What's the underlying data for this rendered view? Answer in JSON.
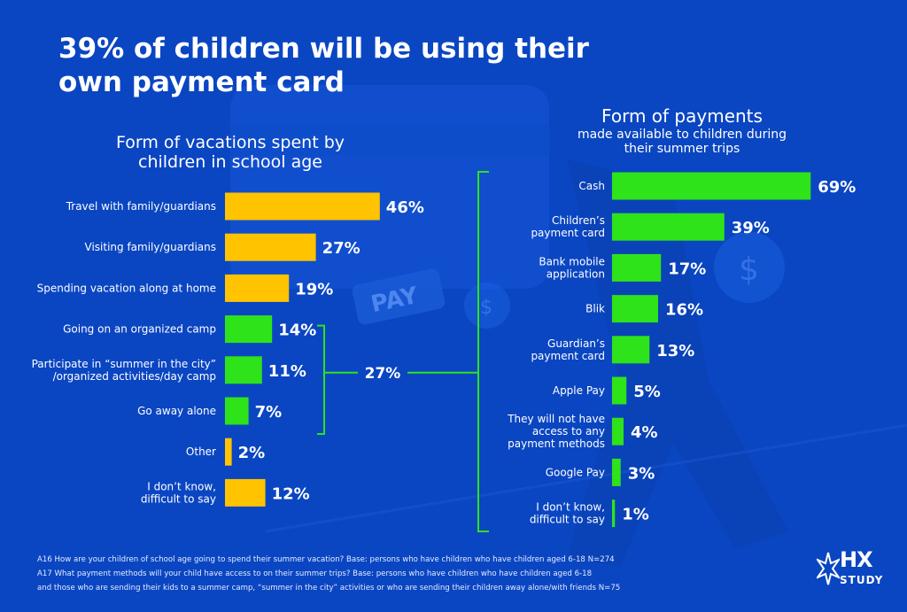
{
  "title": "39% of children will be using their own payment card",
  "chart_data": [
    {
      "type": "bar",
      "orientation": "horizontal",
      "title": "Form of vacations spent by children in school age",
      "categories": [
        "Travel with family/guardians",
        "Visiting family/guardians",
        "Spending vacation along at home",
        "Going on an organized camp",
        "Participate in “summer in the city” /organized activities/day camp",
        "Go away alone",
        "Other",
        "I don’t know, difficult to say"
      ],
      "label_lines": [
        [
          "Travel with family/guardians"
        ],
        [
          "Visiting family/guardians"
        ],
        [
          "Spending vacation along at home"
        ],
        [
          "Going on an organized camp"
        ],
        [
          "Participate in “summer in the city”",
          "/organized activities/day camp"
        ],
        [
          "Go away alone"
        ],
        [
          "Other"
        ],
        [
          "I don’t know,",
          "difficult to say"
        ]
      ],
      "values": [
        46,
        27,
        19,
        14,
        11,
        7,
        2,
        12
      ],
      "value_labels": [
        "46%",
        "27%",
        "19%",
        "14%",
        "11%",
        "7%",
        "2%",
        "12%"
      ],
      "bar_colors": [
        "#ffc300",
        "#ffc300",
        "#ffc300",
        "#2ee31a",
        "#2ee31a",
        "#2ee31a",
        "#ffc300",
        "#ffc300"
      ],
      "bracket": {
        "from_index": 3,
        "to_index": 5,
        "label": "27%"
      },
      "value_unit": "%"
    },
    {
      "type": "bar",
      "orientation": "horizontal",
      "title": "Form of payments",
      "subtitle": "made available to children during their summer trips",
      "categories": [
        "Cash",
        "Children’s payment card",
        "Bank mobile application",
        "Blik",
        "Guardian’s payment card",
        "Apple Pay",
        "They will not have access to any payment methods",
        "Google Pay",
        "I don’t know, difficult to say"
      ],
      "label_lines": [
        [
          "Cash"
        ],
        [
          "Children’s",
          "payment card"
        ],
        [
          "Bank mobile",
          "application"
        ],
        [
          "Blik"
        ],
        [
          "Guardian’s",
          "payment card"
        ],
        [
          "Apple Pay"
        ],
        [
          "They will not have",
          "access to any",
          "payment methods"
        ],
        [
          "Google Pay"
        ],
        [
          "I don’t know,",
          "difficult to say"
        ]
      ],
      "values": [
        69,
        39,
        17,
        16,
        13,
        5,
        4,
        3,
        1
      ],
      "value_labels": [
        "69%",
        "39%",
        "17%",
        "16%",
        "13%",
        "5%",
        "4%",
        "3%",
        "1%"
      ],
      "bar_color": "#2ee31a",
      "value_unit": "%"
    }
  ],
  "footnotes": [
    "A16 How are your children of school age going to spend their summer vacation? Base: persons who have children who have children aged 6-18 N=274",
    "A17 What payment methods will your child have access to on their summer trips? Base: persons who have children who have children aged 6-18",
    "and those who are sending their kids to a summer camp, “summer in the city” activities or who are sending their children away alone/with friends N=75"
  ],
  "background_decoration": {
    "pay_tag_text": "PAY",
    "coin_symbol": "$"
  },
  "logo": {
    "top": "HX",
    "bottom": "STUDY"
  },
  "colors": {
    "background": "#0a46c2",
    "yellow": "#ffc300",
    "green": "#2ee31a",
    "connector": "#2ee31a"
  }
}
